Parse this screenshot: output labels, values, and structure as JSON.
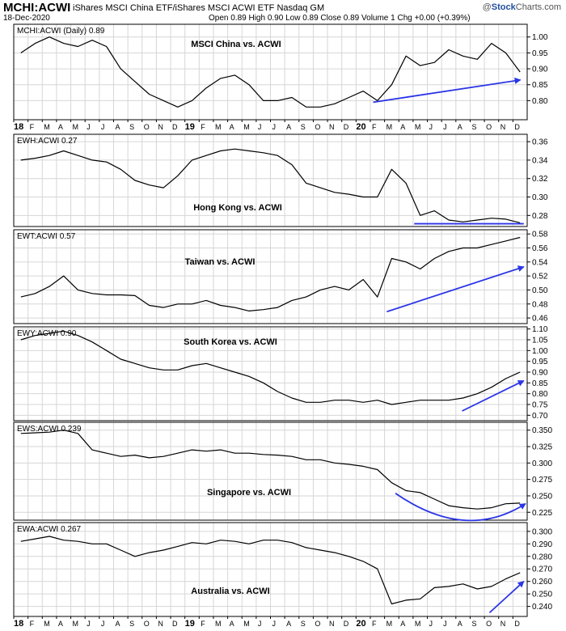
{
  "header": {
    "symbol": "MCHI:ACWI",
    "description": "iShares MSCI China ETF/iShares MSCI ACWI ETF  Nasdaq GM",
    "date": "18-Dec-2020",
    "quote_line": "Open 0.89  High 0.90  Low 0.89  Close 0.89  Volume 1  Chg +0.00 (+0.39%)",
    "logo_copyright": "@",
    "logo_main": "Stock",
    "logo_suffix": "Charts.com"
  },
  "x_axis": {
    "tick_labels": [
      "18",
      "F",
      "M",
      "A",
      "M",
      "J",
      "J",
      "A",
      "S",
      "O",
      "N",
      "D",
      "19",
      "F",
      "M",
      "A",
      "M",
      "J",
      "J",
      "A",
      "S",
      "O",
      "N",
      "D",
      "20",
      "F",
      "M",
      "A",
      "M",
      "J",
      "J",
      "A",
      "S",
      "O",
      "N",
      "D"
    ],
    "year_labels": [
      "18",
      "19",
      "20"
    ]
  },
  "colors": {
    "price_line": "#000000",
    "annotation": "#2b35e6",
    "grid": "#d6d6d6",
    "frame": "#000000"
  },
  "chart_data": [
    {
      "type": "line",
      "legend": "MCHI:ACWI (Daily) 0.89",
      "title": "MSCI China vs. ACWI",
      "y_ticks": [
        "1.00",
        "0.95",
        "0.90",
        "0.85",
        "0.80"
      ],
      "ylim": [
        0.74,
        1.04
      ],
      "series": [
        {
          "values": [
            0.95,
            0.98,
            1.0,
            0.98,
            0.97,
            0.99,
            0.97,
            0.9,
            0.86,
            0.82,
            0.8,
            0.78,
            0.8,
            0.84,
            0.87,
            0.88,
            0.85,
            0.8,
            0.8,
            0.81,
            0.78,
            0.78,
            0.79,
            0.81,
            0.83,
            0.8,
            0.85,
            0.94,
            0.91,
            0.92,
            0.96,
            0.94,
            0.93,
            0.98,
            0.95,
            0.89
          ]
        }
      ],
      "annotation": {
        "shape": "arrow",
        "from": [
          2020.1,
          0.795
        ],
        "to": [
          2020.96,
          0.865
        ]
      }
    },
    {
      "type": "line",
      "legend": "EWH:ACWI 0.27",
      "title": "Hong Kong vs. ACWI",
      "y_ticks": [
        "0.36",
        "0.34",
        "0.32",
        "0.30",
        "0.28"
      ],
      "ylim": [
        0.268,
        0.368
      ],
      "series": [
        {
          "values": [
            0.34,
            0.342,
            0.345,
            0.35,
            0.345,
            0.34,
            0.338,
            0.33,
            0.318,
            0.313,
            0.31,
            0.323,
            0.34,
            0.345,
            0.35,
            0.352,
            0.35,
            0.348,
            0.345,
            0.335,
            0.315,
            0.31,
            0.305,
            0.303,
            0.3,
            0.3,
            0.33,
            0.315,
            0.28,
            0.285,
            0.275,
            0.273,
            0.275,
            0.277,
            0.276,
            0.272
          ]
        }
      ],
      "annotation": {
        "shape": "line",
        "from": [
          2020.34,
          0.271
        ],
        "to": [
          2020.98,
          0.271
        ]
      }
    },
    {
      "type": "line",
      "legend": "EWT:ACWI 0.57",
      "title": "Taiwan vs. ACWI",
      "y_ticks": [
        "0.58",
        "0.56",
        "0.54",
        "0.52",
        "0.50",
        "0.48",
        "0.46"
      ],
      "ylim": [
        0.452,
        0.586
      ],
      "series": [
        {
          "values": [
            0.49,
            0.495,
            0.505,
            0.52,
            0.5,
            0.495,
            0.493,
            0.493,
            0.492,
            0.478,
            0.475,
            0.48,
            0.48,
            0.485,
            0.478,
            0.475,
            0.47,
            0.472,
            0.475,
            0.485,
            0.49,
            0.5,
            0.505,
            0.5,
            0.515,
            0.49,
            0.545,
            0.54,
            0.53,
            0.545,
            0.555,
            0.56,
            0.56,
            0.565,
            0.57,
            0.575
          ]
        }
      ],
      "annotation": {
        "shape": "arrow",
        "from": [
          2020.18,
          0.469
        ],
        "to": [
          2020.98,
          0.533
        ]
      }
    },
    {
      "type": "line",
      "legend": "EWY:ACWI 0.90",
      "title": "South Korea vs. ACWI",
      "y_ticks": [
        "1.10",
        "1.05",
        "1.00",
        "0.95",
        "0.90",
        "0.85",
        "0.80",
        "0.75",
        "0.70"
      ],
      "ylim": [
        0.675,
        1.11
      ],
      "series": [
        {
          "values": [
            1.05,
            1.07,
            1.08,
            1.09,
            1.07,
            1.04,
            1.0,
            0.96,
            0.94,
            0.92,
            0.91,
            0.91,
            0.93,
            0.94,
            0.92,
            0.9,
            0.88,
            0.85,
            0.81,
            0.78,
            0.76,
            0.76,
            0.77,
            0.77,
            0.76,
            0.77,
            0.75,
            0.76,
            0.77,
            0.77,
            0.77,
            0.78,
            0.8,
            0.83,
            0.87,
            0.9
          ]
        }
      ],
      "annotation": {
        "shape": "arrow",
        "from": [
          2020.62,
          0.72
        ],
        "to": [
          2020.98,
          0.86
        ]
      }
    },
    {
      "type": "line",
      "legend": "EWS:ACWI 0.239",
      "title": "Singapore vs. ACWI",
      "y_ticks": [
        "0.350",
        "0.325",
        "0.300",
        "0.275",
        "0.250",
        "0.225"
      ],
      "ylim": [
        0.213,
        0.362
      ],
      "series": [
        {
          "values": [
            0.345,
            0.346,
            0.347,
            0.35,
            0.345,
            0.32,
            0.315,
            0.31,
            0.312,
            0.308,
            0.31,
            0.315,
            0.32,
            0.318,
            0.32,
            0.315,
            0.315,
            0.313,
            0.312,
            0.31,
            0.305,
            0.305,
            0.3,
            0.298,
            0.295,
            0.29,
            0.27,
            0.258,
            0.255,
            0.245,
            0.235,
            0.232,
            0.23,
            0.232,
            0.238,
            0.239
          ]
        }
      ],
      "annotation": {
        "shape": "arc-arrow",
        "from": [
          2020.23,
          0.254
        ],
        "ctrl": [
          2020.64,
          0.18
        ],
        "to": [
          2020.99,
          0.238
        ]
      }
    },
    {
      "type": "line",
      "legend": "EWA:ACWI 0.267",
      "title": "Australia vs. ACWI",
      "y_ticks": [
        "0.300",
        "0.290",
        "0.280",
        "0.270",
        "0.260",
        "0.250",
        "0.240"
      ],
      "ylim": [
        0.232,
        0.307
      ],
      "series": [
        {
          "values": [
            0.292,
            0.294,
            0.296,
            0.293,
            0.292,
            0.29,
            0.29,
            0.285,
            0.28,
            0.283,
            0.285,
            0.288,
            0.291,
            0.29,
            0.293,
            0.292,
            0.29,
            0.293,
            0.293,
            0.291,
            0.287,
            0.285,
            0.283,
            0.28,
            0.276,
            0.27,
            0.242,
            0.245,
            0.246,
            0.255,
            0.256,
            0.258,
            0.254,
            0.256,
            0.262,
            0.267
          ]
        }
      ],
      "annotation": {
        "shape": "arrow",
        "from": [
          2020.78,
          0.235
        ],
        "to": [
          2020.98,
          0.26
        ]
      }
    }
  ]
}
